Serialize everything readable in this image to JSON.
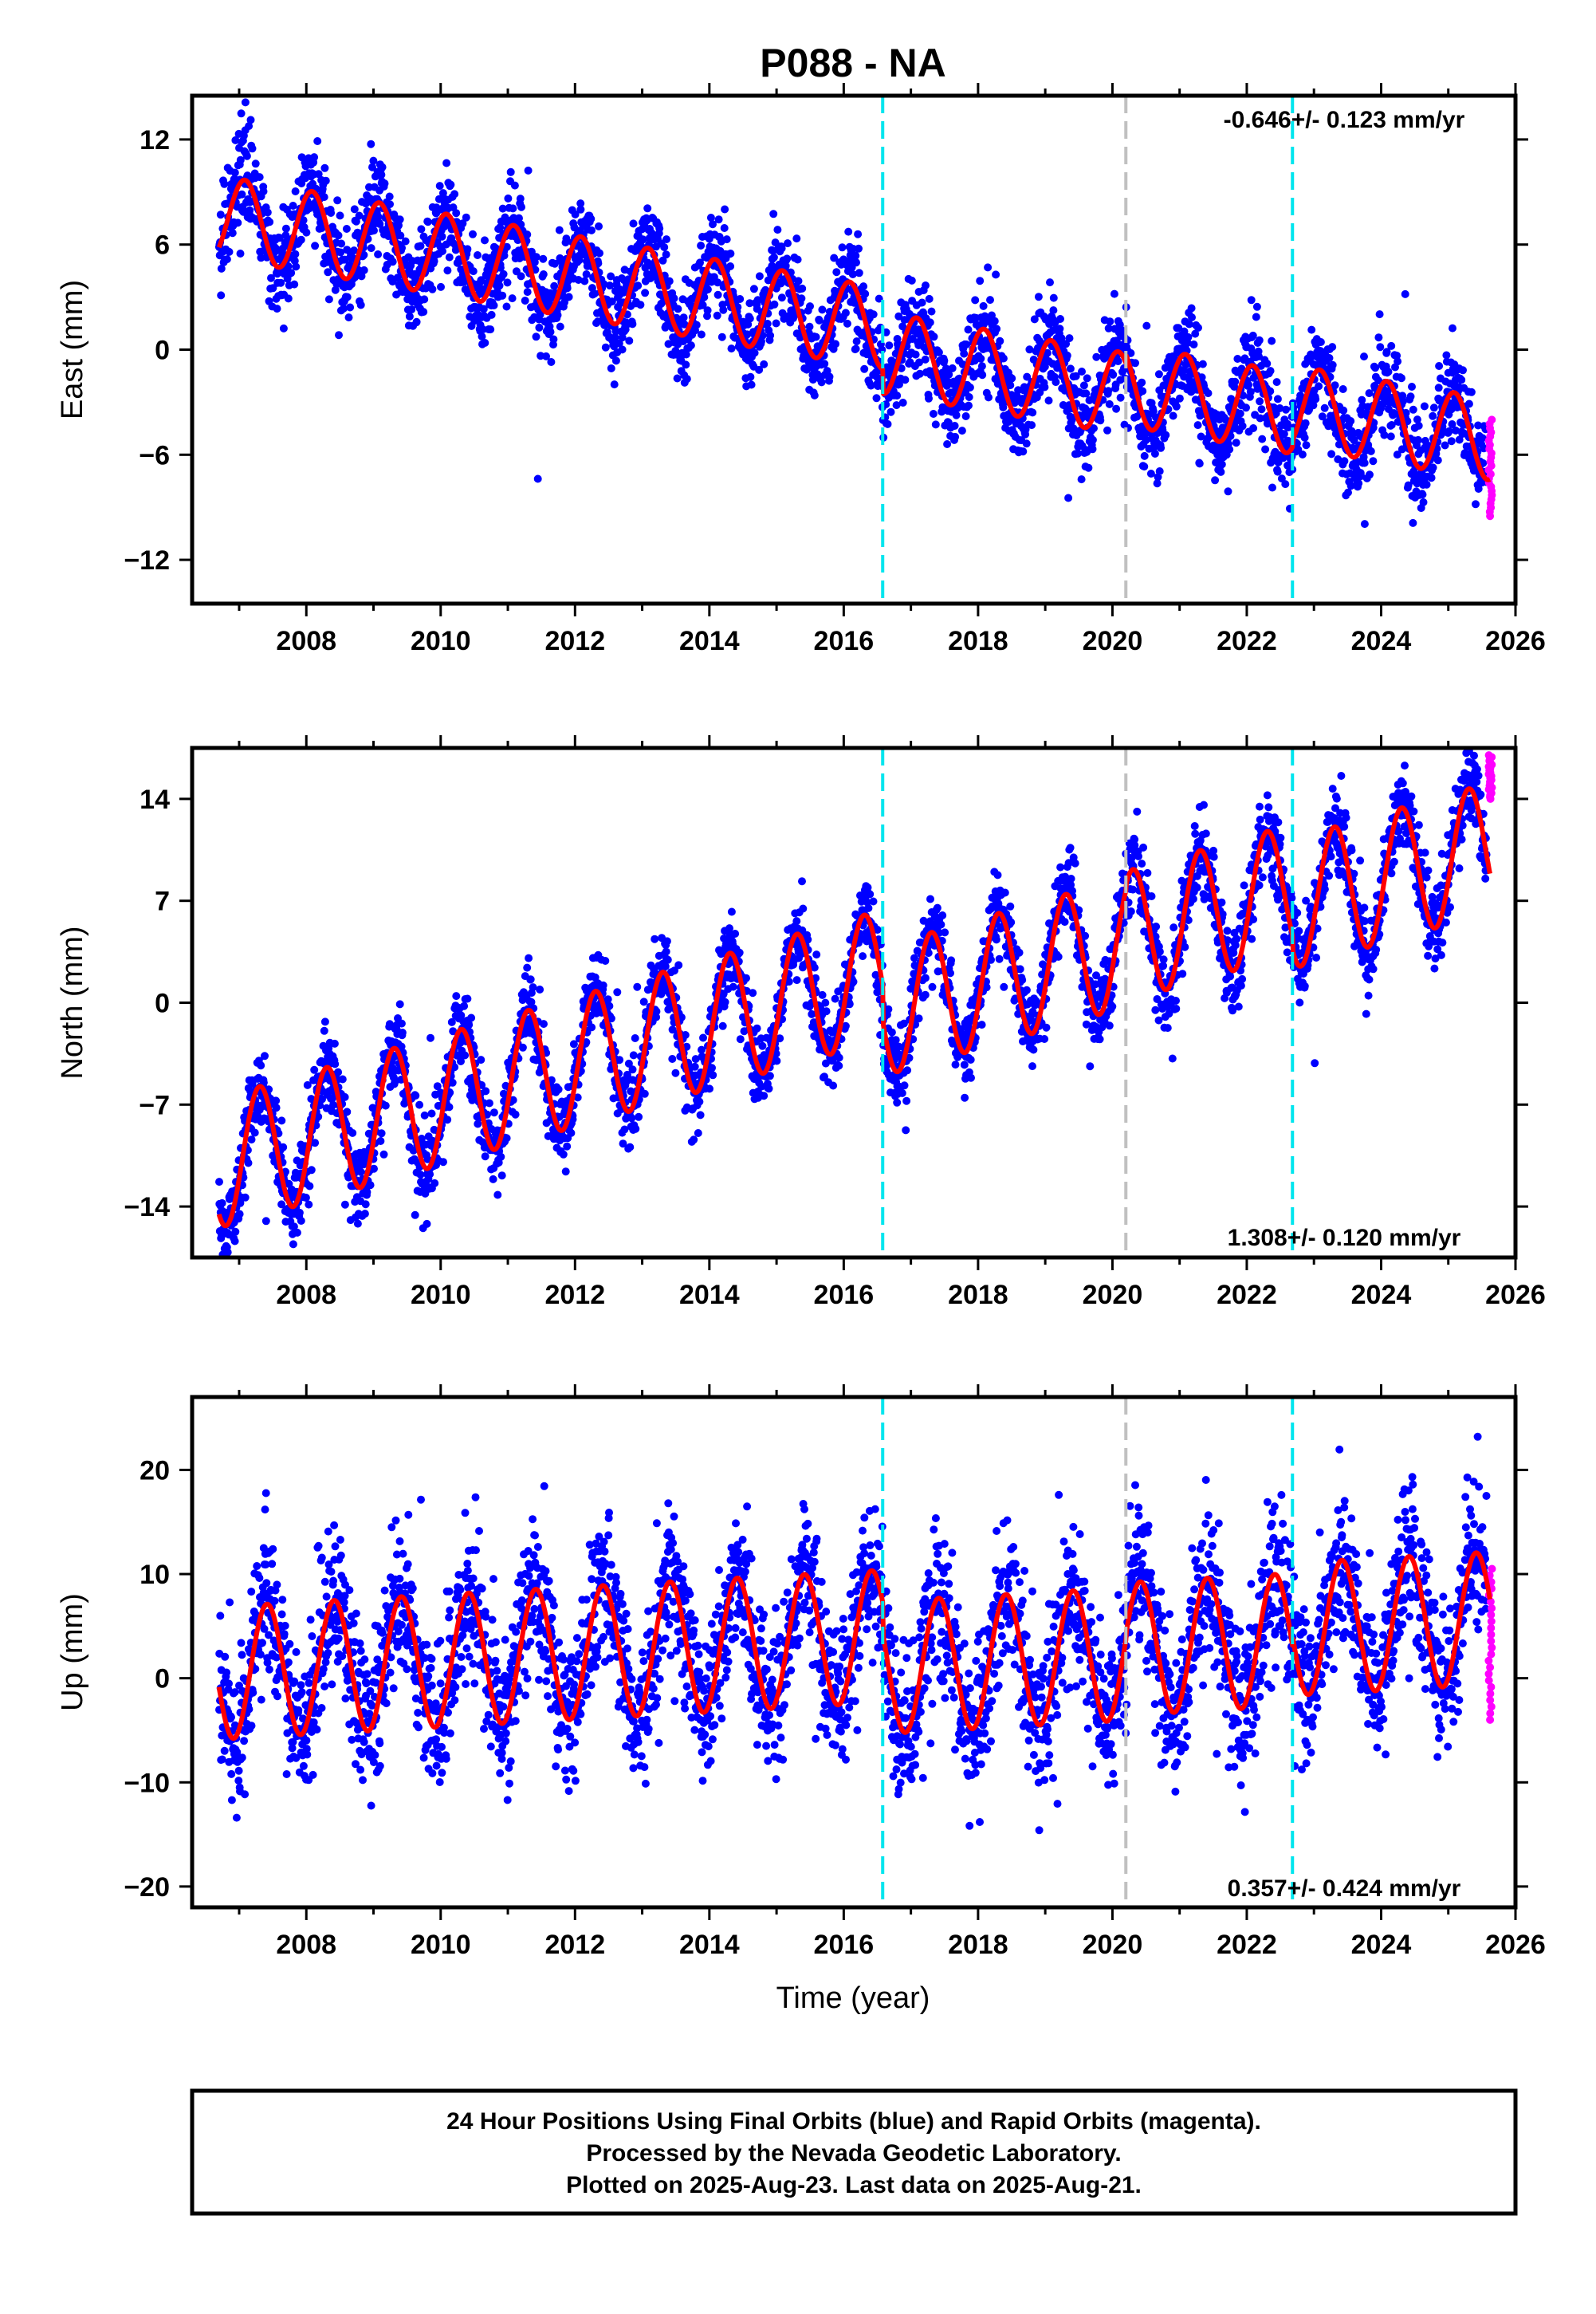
{
  "figure": {
    "title": "P088 - NA",
    "xlabel": "Time (year)",
    "footer": [
      "24 Hour Positions Using Final Orbits (blue) and Rapid Orbits (magenta).",
      "Processed by the Nevada Geodetic Laboratory.",
      "Plotted on 2025-Aug-23. Last data on 2025-Aug-21."
    ]
  },
  "colors": {
    "final_orbits": "#0000ff",
    "rapid_orbits": "#ff00ff",
    "model_fit": "#ff0000",
    "equipment_change": "#00e5ee",
    "other_event": "#c0c0c0"
  },
  "chart_data": [
    {
      "type": "scatter",
      "panel": "east",
      "ylabel": "East (mm)",
      "rate_label": "-0.646+/- 0.123 mm/yr",
      "xlim": [
        2006.3,
        2026.0
      ],
      "ylim": [
        -14.5,
        14.5
      ],
      "xticks": [
        2008,
        2010,
        2012,
        2014,
        2016,
        2018,
        2020,
        2022,
        2024,
        2026
      ],
      "yticks": [
        12,
        6,
        0,
        -6,
        -12
      ],
      "offsets": [
        {
          "x": 2016.58,
          "kind": "equipment"
        },
        {
          "x": 2020.2,
          "kind": "other"
        },
        {
          "x": 2022.68,
          "kind": "equipment"
        }
      ],
      "model": {
        "start": 2006.7,
        "end": 2025.62,
        "intercept": 7.6,
        "trend": -0.646,
        "amp_cos": 2.0,
        "amp_sin": 1.2,
        "noise": 1.35,
        "steps": [
          {
            "x": 2016.58,
            "dy": -1.4
          },
          {
            "x": 2020.2,
            "dy": 0.5
          },
          {
            "x": 2022.68,
            "dy": 0.4
          }
        ]
      },
      "rapid_range": [
        -9.5,
        -4.0
      ]
    },
    {
      "type": "scatter",
      "panel": "north",
      "ylabel": "North (mm)",
      "rate_label": "1.308+/- 0.120 mm/yr",
      "xlim": [
        2006.3,
        2026.0
      ],
      "ylim": [
        -17.5,
        17.5
      ],
      "xticks": [
        2008,
        2010,
        2012,
        2014,
        2016,
        2018,
        2020,
        2022,
        2024,
        2026
      ],
      "yticks": [
        14,
        7,
        0,
        -7,
        -14
      ],
      "offsets": [
        {
          "x": 2016.58,
          "kind": "equipment"
        },
        {
          "x": 2020.2,
          "kind": "other"
        },
        {
          "x": 2022.68,
          "kind": "equipment"
        }
      ],
      "model": {
        "start": 2006.7,
        "end": 2025.62,
        "intercept": -11.0,
        "trend": 1.308,
        "amp_cos": -1.5,
        "amp_sin": 4.2,
        "noise": 1.4,
        "steps": [
          {
            "x": 2016.58,
            "dy": -2.5
          },
          {
            "x": 2020.2,
            "dy": 0.4
          },
          {
            "x": 2022.68,
            "dy": -1.0
          }
        ]
      },
      "rapid_range": [
        14.0,
        17.0
      ]
    },
    {
      "type": "scatter",
      "panel": "up",
      "ylabel": "Up (mm)",
      "rate_label": "0.357+/- 0.424 mm/yr",
      "xlim": [
        2006.3,
        2026.0
      ],
      "ylim": [
        -22,
        27
      ],
      "xticks": [
        2008,
        2010,
        2012,
        2014,
        2016,
        2018,
        2020,
        2022,
        2024,
        2026
      ],
      "yticks": [
        20,
        10,
        0,
        -10,
        -20
      ],
      "offsets": [
        {
          "x": 2016.58,
          "kind": "equipment"
        },
        {
          "x": 2020.2,
          "kind": "other"
        },
        {
          "x": 2022.68,
          "kind": "equipment"
        }
      ],
      "model": {
        "start": 2006.7,
        "end": 2025.62,
        "intercept": 0.5,
        "trend": 0.357,
        "amp_cos": -5.5,
        "amp_sin": 3.2,
        "noise": 3.6,
        "steps": [
          {
            "x": 2016.58,
            "dy": -3.0
          },
          {
            "x": 2020.2,
            "dy": 0.5
          },
          {
            "x": 2022.68,
            "dy": 1.0
          }
        ]
      },
      "rapid_range": [
        -4.0,
        10.5
      ]
    }
  ]
}
